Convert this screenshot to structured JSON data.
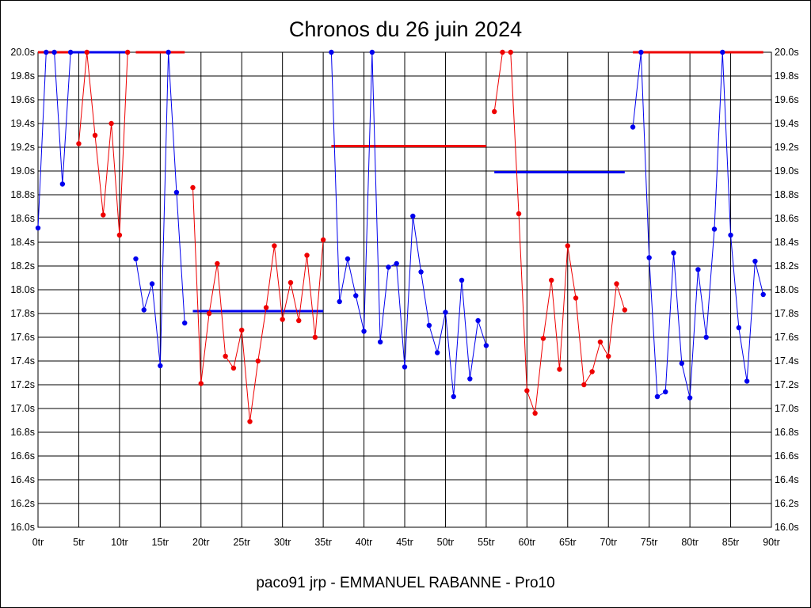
{
  "chart_data": {
    "type": "line",
    "title": "Chronos du 26 juin 2024",
    "subtitle": "paco91 jrp - EMMANUEL RABANNE - Pro10",
    "x_tick_labels": [
      "0tr",
      "5tr",
      "10tr",
      "15tr",
      "20tr",
      "25tr",
      "30tr",
      "35tr",
      "40tr",
      "45tr",
      "50tr",
      "55tr",
      "60tr",
      "65tr",
      "70tr",
      "75tr",
      "80tr",
      "85tr",
      "90tr"
    ],
    "y_tick_labels": [
      "16.0s",
      "16.2s",
      "16.4s",
      "16.6s",
      "16.8s",
      "17.0s",
      "17.2s",
      "17.4s",
      "17.6s",
      "17.8s",
      "18.0s",
      "18.2s",
      "18.4s",
      "18.6s",
      "18.8s",
      "19.0s",
      "19.2s",
      "19.4s",
      "19.6s",
      "19.8s",
      "20.0s"
    ],
    "xlim": [
      0,
      90
    ],
    "ylim": [
      16.0,
      20.0
    ],
    "grid": true,
    "colors": {
      "blue": "#0000ee",
      "red": "#ee0000"
    },
    "series": [
      {
        "color": "blue",
        "x": [
          0,
          1,
          2,
          3,
          4
        ],
        "y": [
          18.52,
          20.0,
          20.0,
          18.89,
          20.0
        ]
      },
      {
        "color": "red",
        "x": [
          5,
          6,
          7,
          8,
          9,
          10,
          11
        ],
        "y": [
          19.23,
          20.0,
          19.3,
          18.63,
          19.4,
          18.46,
          20.0
        ]
      },
      {
        "color": "blue",
        "x": [
          12,
          13,
          14,
          15,
          16,
          17,
          18
        ],
        "y": [
          18.26,
          17.83,
          18.05,
          17.36,
          20.0,
          18.82,
          17.72
        ]
      },
      {
        "color": "red",
        "x": [
          19,
          20,
          21,
          22,
          23,
          24,
          25,
          26,
          27,
          28,
          29,
          30,
          31,
          32,
          33,
          34,
          35
        ],
        "y": [
          18.86,
          17.21,
          17.8,
          18.22,
          17.44,
          17.34,
          17.66,
          16.89,
          17.4,
          17.85,
          18.37,
          17.75,
          18.06,
          17.74,
          18.29,
          17.6,
          18.42
        ]
      },
      {
        "color": "blue",
        "x": [
          36,
          37,
          38,
          39,
          40,
          41,
          42,
          43,
          44,
          45,
          46,
          47,
          48,
          49,
          50,
          51,
          52,
          53,
          54,
          55
        ],
        "y": [
          20.0,
          17.9,
          18.26,
          17.95,
          17.65,
          20.0,
          17.56,
          18.19,
          18.22,
          17.35,
          18.62,
          18.15,
          17.7,
          17.47,
          17.81,
          17.1,
          18.08,
          17.25,
          17.74,
          17.53
        ]
      },
      {
        "color": "red",
        "x": [
          56,
          57,
          58,
          59,
          60,
          61,
          62,
          63,
          64,
          65,
          66,
          67,
          68,
          69,
          70,
          71,
          72
        ],
        "y": [
          19.5,
          20.0,
          20.0,
          18.64,
          17.15,
          16.96,
          17.59,
          18.08,
          17.33,
          18.37,
          17.93,
          17.2,
          17.31,
          17.56,
          17.44,
          18.05,
          17.83
        ]
      },
      {
        "color": "blue",
        "x": [
          73,
          74,
          75,
          76,
          77,
          78,
          79,
          80,
          81,
          82,
          83,
          84,
          85,
          86,
          87,
          88,
          89
        ],
        "y": [
          19.37,
          20.0,
          18.27,
          17.1,
          17.14,
          18.31,
          17.38,
          17.09,
          18.17,
          17.6,
          18.51,
          20.0,
          18.46,
          17.68,
          17.23,
          18.24,
          17.96
        ]
      }
    ],
    "average_lines": [
      {
        "color": "red",
        "x": [
          0,
          4
        ],
        "y": 20.0
      },
      {
        "color": "blue",
        "x": [
          4,
          11
        ],
        "y": 20.0
      },
      {
        "color": "red",
        "x": [
          12,
          18
        ],
        "y": 20.0
      },
      {
        "color": "blue",
        "x": [
          19,
          35
        ],
        "y": 17.82
      },
      {
        "color": "red",
        "x": [
          36,
          55
        ],
        "y": 19.21
      },
      {
        "color": "blue",
        "x": [
          56,
          72
        ],
        "y": 18.99
      },
      {
        "color": "red",
        "x": [
          73,
          89
        ],
        "y": 20.0
      }
    ]
  }
}
